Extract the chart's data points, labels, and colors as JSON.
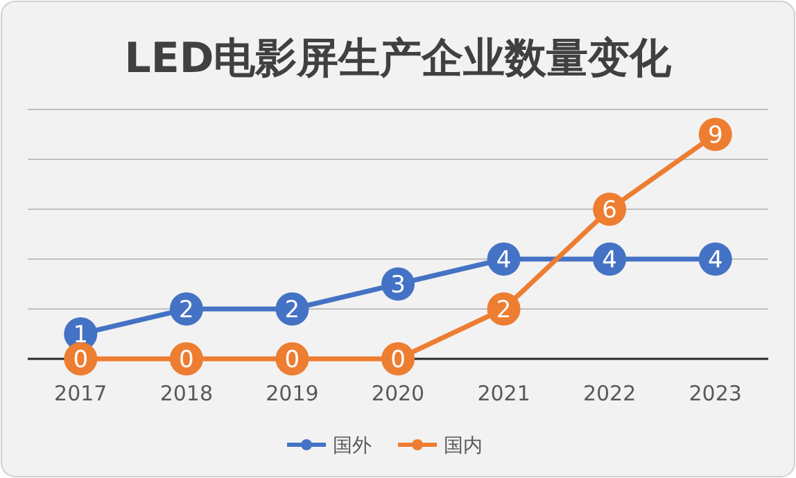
{
  "chart_data": {
    "type": "line",
    "title": "LED电影屏生产企业数量变化",
    "categories": [
      "2017",
      "2018",
      "2019",
      "2020",
      "2021",
      "2022",
      "2023"
    ],
    "series": [
      {
        "name": "国外",
        "color": "#4472c4",
        "values": [
          1,
          2,
          2,
          3,
          4,
          4,
          4
        ]
      },
      {
        "name": "国内",
        "color": "#ed7d31",
        "values": [
          0,
          0,
          0,
          0,
          2,
          6,
          9
        ]
      }
    ],
    "ylim": [
      0,
      10
    ],
    "yticks": [
      {
        "value": 0,
        "label": null
      },
      {
        "value": 2,
        "label": null
      },
      {
        "value": 4,
        "label": null
      },
      {
        "value": 6,
        "label": null
      },
      {
        "value": 8,
        "label": null
      },
      {
        "value": 10,
        "label": null
      }
    ],
    "tick_labels": "x",
    "grid": "y",
    "legend": "bottom",
    "marker": "circle",
    "line_style": "solid",
    "data_labels": true
  }
}
